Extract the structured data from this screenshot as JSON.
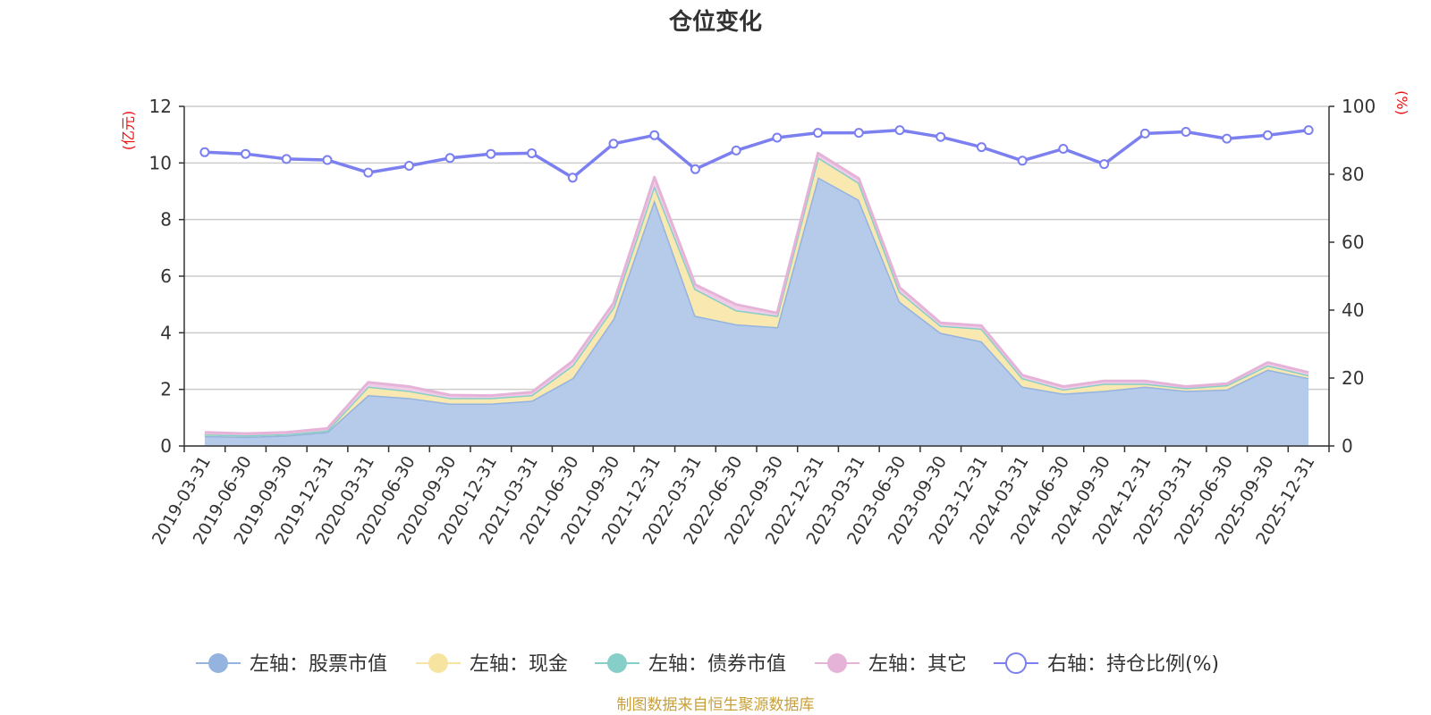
{
  "chart_data": {
    "type": "area",
    "title": "仓位变化",
    "source": "制图数据来自恒生聚源数据库",
    "left_axis": {
      "unit": "(亿元)",
      "min": 0,
      "max": 12,
      "ticks": [
        0,
        2,
        4,
        6,
        8,
        10,
        12
      ]
    },
    "right_axis": {
      "unit": "(%)",
      "min": 0,
      "max": 100,
      "ticks": [
        0,
        20,
        40,
        60,
        80,
        100
      ]
    },
    "grid": true,
    "legend_position": "bottom",
    "categories": [
      "2019-03-31",
      "2019-06-30",
      "2019-09-30",
      "2019-12-31",
      "2020-03-31",
      "2020-06-30",
      "2020-09-30",
      "2020-12-31",
      "2021-03-31",
      "2021-06-30",
      "2021-09-30",
      "2021-12-31",
      "2022-03-31",
      "2022-06-30",
      "2022-09-30",
      "2022-12-31",
      "2023-03-31",
      "2023-06-30",
      "2023-09-30",
      "2023-12-31",
      "2024-03-31",
      "2024-06-30",
      "2024-09-30",
      "2024-12-31",
      "2025-03-31",
      "2025-06-30",
      "2025-09-30",
      "2025-12-31"
    ],
    "series": [
      {
        "name": "左轴：股票市值",
        "axis": "left",
        "color": "#94b3df",
        "fill": "#b6cbea",
        "values": [
          0.35,
          0.33,
          0.37,
          0.5,
          1.8,
          1.7,
          1.5,
          1.5,
          1.6,
          2.4,
          4.5,
          8.7,
          4.6,
          4.3,
          4.2,
          9.5,
          8.7,
          5.1,
          4.0,
          3.7,
          2.1,
          1.85,
          1.95,
          2.1,
          1.95,
          2.0,
          2.7,
          2.4
        ]
      },
      {
        "name": "左轴：现金",
        "axis": "left",
        "color": "#f7e4a0",
        "fill": "#f9e8b0",
        "values": [
          0.06,
          0.05,
          0.05,
          0.05,
          0.3,
          0.25,
          0.2,
          0.2,
          0.2,
          0.45,
          0.4,
          0.5,
          0.95,
          0.5,
          0.4,
          0.7,
          0.6,
          0.35,
          0.25,
          0.45,
          0.3,
          0.15,
          0.25,
          0.1,
          0.1,
          0.15,
          0.15,
          0.1
        ]
      },
      {
        "name": "左轴：债券市值",
        "axis": "left",
        "color": "#86cfc9",
        "fill": "#a6dcd7",
        "values": [
          0,
          0,
          0,
          0,
          0,
          0,
          0,
          0,
          0,
          0,
          0,
          0,
          0,
          0,
          0,
          0,
          0,
          0,
          0,
          0,
          0,
          0,
          0,
          0,
          0,
          0,
          0,
          0
        ]
      },
      {
        "name": "左轴：其它",
        "axis": "left",
        "color": "#e6b3d8",
        "fill": "#f0cce6",
        "values": [
          0.07,
          0.06,
          0.06,
          0.07,
          0.15,
          0.15,
          0.1,
          0.08,
          0.1,
          0.15,
          0.15,
          0.3,
          0.15,
          0.2,
          0.1,
          0.15,
          0.15,
          0.15,
          0.1,
          0.1,
          0.1,
          0.1,
          0.1,
          0.1,
          0.05,
          0.05,
          0.1,
          0.1
        ]
      },
      {
        "name": "右轴：持仓比例(%)",
        "axis": "right",
        "color": "#7b7ff0",
        "values": [
          86.5,
          86,
          84.5,
          84.2,
          80.5,
          82.5,
          84.8,
          86,
          86.2,
          79,
          89,
          91.5,
          81.5,
          87,
          90.8,
          92.2,
          92.2,
          93,
          91,
          88,
          84,
          87.5,
          83,
          92,
          92.5,
          90.5,
          91.5,
          93
        ]
      }
    ]
  }
}
